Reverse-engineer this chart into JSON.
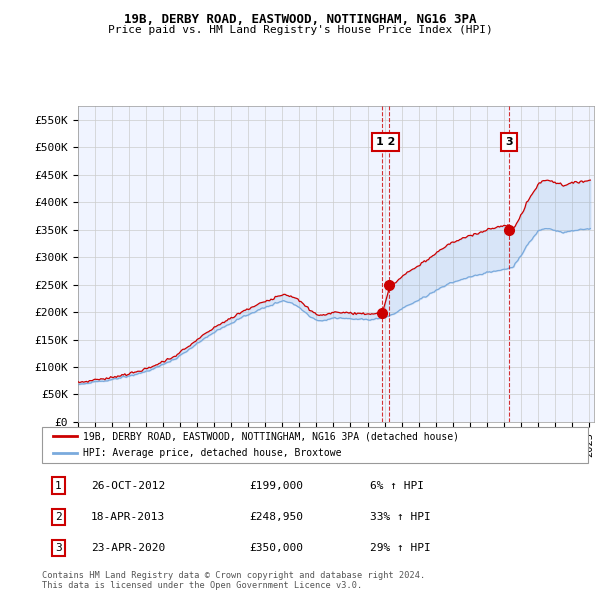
{
  "title": "19B, DERBY ROAD, EASTWOOD, NOTTINGHAM, NG16 3PA",
  "subtitle": "Price paid vs. HM Land Registry's House Price Index (HPI)",
  "ylim": [
    0,
    575000
  ],
  "yticks": [
    0,
    50000,
    100000,
    150000,
    200000,
    250000,
    300000,
    350000,
    400000,
    450000,
    500000,
    550000
  ],
  "ytick_labels": [
    "£0",
    "£50K",
    "£100K",
    "£150K",
    "£200K",
    "£250K",
    "£300K",
    "£350K",
    "£400K",
    "£450K",
    "£500K",
    "£550K"
  ],
  "x_start_year": 1995,
  "x_end_year": 2025,
  "property_color": "#cc0000",
  "hpi_color": "#7aaadd",
  "sale1_year": 2012.83,
  "sale1_price": 199000,
  "sale1_pct": "6%",
  "sale2_year": 2013.29,
  "sale2_price": 248950,
  "sale2_pct": "33%",
  "sale3_year": 2020.3,
  "sale3_price": 350000,
  "sale3_pct": "29%",
  "legend_property": "19B, DERBY ROAD, EASTWOOD, NOTTINGHAM, NG16 3PA (detached house)",
  "legend_hpi": "HPI: Average price, detached house, Broxtowe",
  "footer1": "Contains HM Land Registry data © Crown copyright and database right 2024.",
  "footer2": "This data is licensed under the Open Government Licence v3.0.",
  "hpi_anchors_yr": [
    1995,
    1996,
    1997,
    1998,
    1999,
    2000,
    2001,
    2002,
    2003,
    2004,
    2005,
    2006,
    2007,
    2007.5,
    2008,
    2008.5,
    2009,
    2009.5,
    2010,
    2011,
    2012,
    2012.5,
    2013,
    2013.5,
    2014,
    2015,
    2016,
    2017,
    2018,
    2019,
    2020,
    2020.5,
    2021,
    2021.5,
    2022,
    2022.5,
    2023,
    2023.5,
    2024,
    2024.5,
    2025
  ],
  "hpi_anchors_val": [
    68000,
    72000,
    78000,
    84000,
    93000,
    105000,
    122000,
    145000,
    165000,
    182000,
    197000,
    210000,
    222000,
    218000,
    208000,
    195000,
    185000,
    186000,
    190000,
    188000,
    187000,
    188000,
    190000,
    196000,
    207000,
    222000,
    240000,
    255000,
    265000,
    272000,
    278000,
    282000,
    305000,
    328000,
    348000,
    352000,
    348000,
    345000,
    348000,
    350000,
    352000
  ]
}
